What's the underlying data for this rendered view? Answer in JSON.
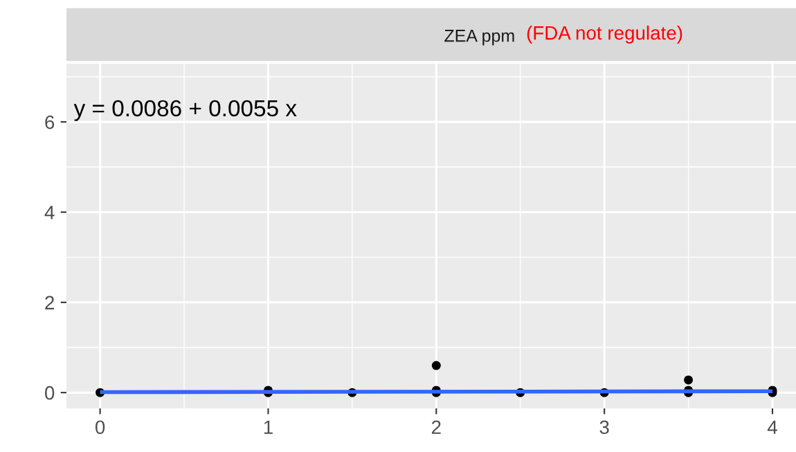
{
  "chart_data": {
    "type": "scatter",
    "title": "ZEA ppm",
    "annotations": [
      "(FDA not regulate)",
      "y = 0.0086 + 0.0055 x"
    ],
    "series": [
      {
        "color": "#000000",
        "marker": "circle",
        "x": [
          0,
          1,
          1,
          1.5,
          2,
          2,
          2,
          2.5,
          3,
          3.5,
          3.5,
          3.5,
          4,
          4
        ],
        "values": [
          0,
          0,
          0.05,
          0,
          0,
          0.05,
          0.6,
          0,
          0,
          0,
          0.05,
          0.28,
          0,
          0.05
        ]
      },
      {
        "type": "line",
        "color": "#3366ff",
        "x": [
          0,
          4
        ],
        "values": [
          0.01,
          0.03
        ]
      }
    ],
    "xlim": [
      -0.2,
      4.14
    ],
    "ylim": [
      -0.35,
      7.29
    ],
    "xticks": [
      0,
      1,
      2,
      3,
      4
    ],
    "yticks": [
      0,
      2,
      4,
      6
    ],
    "grid": true
  }
}
